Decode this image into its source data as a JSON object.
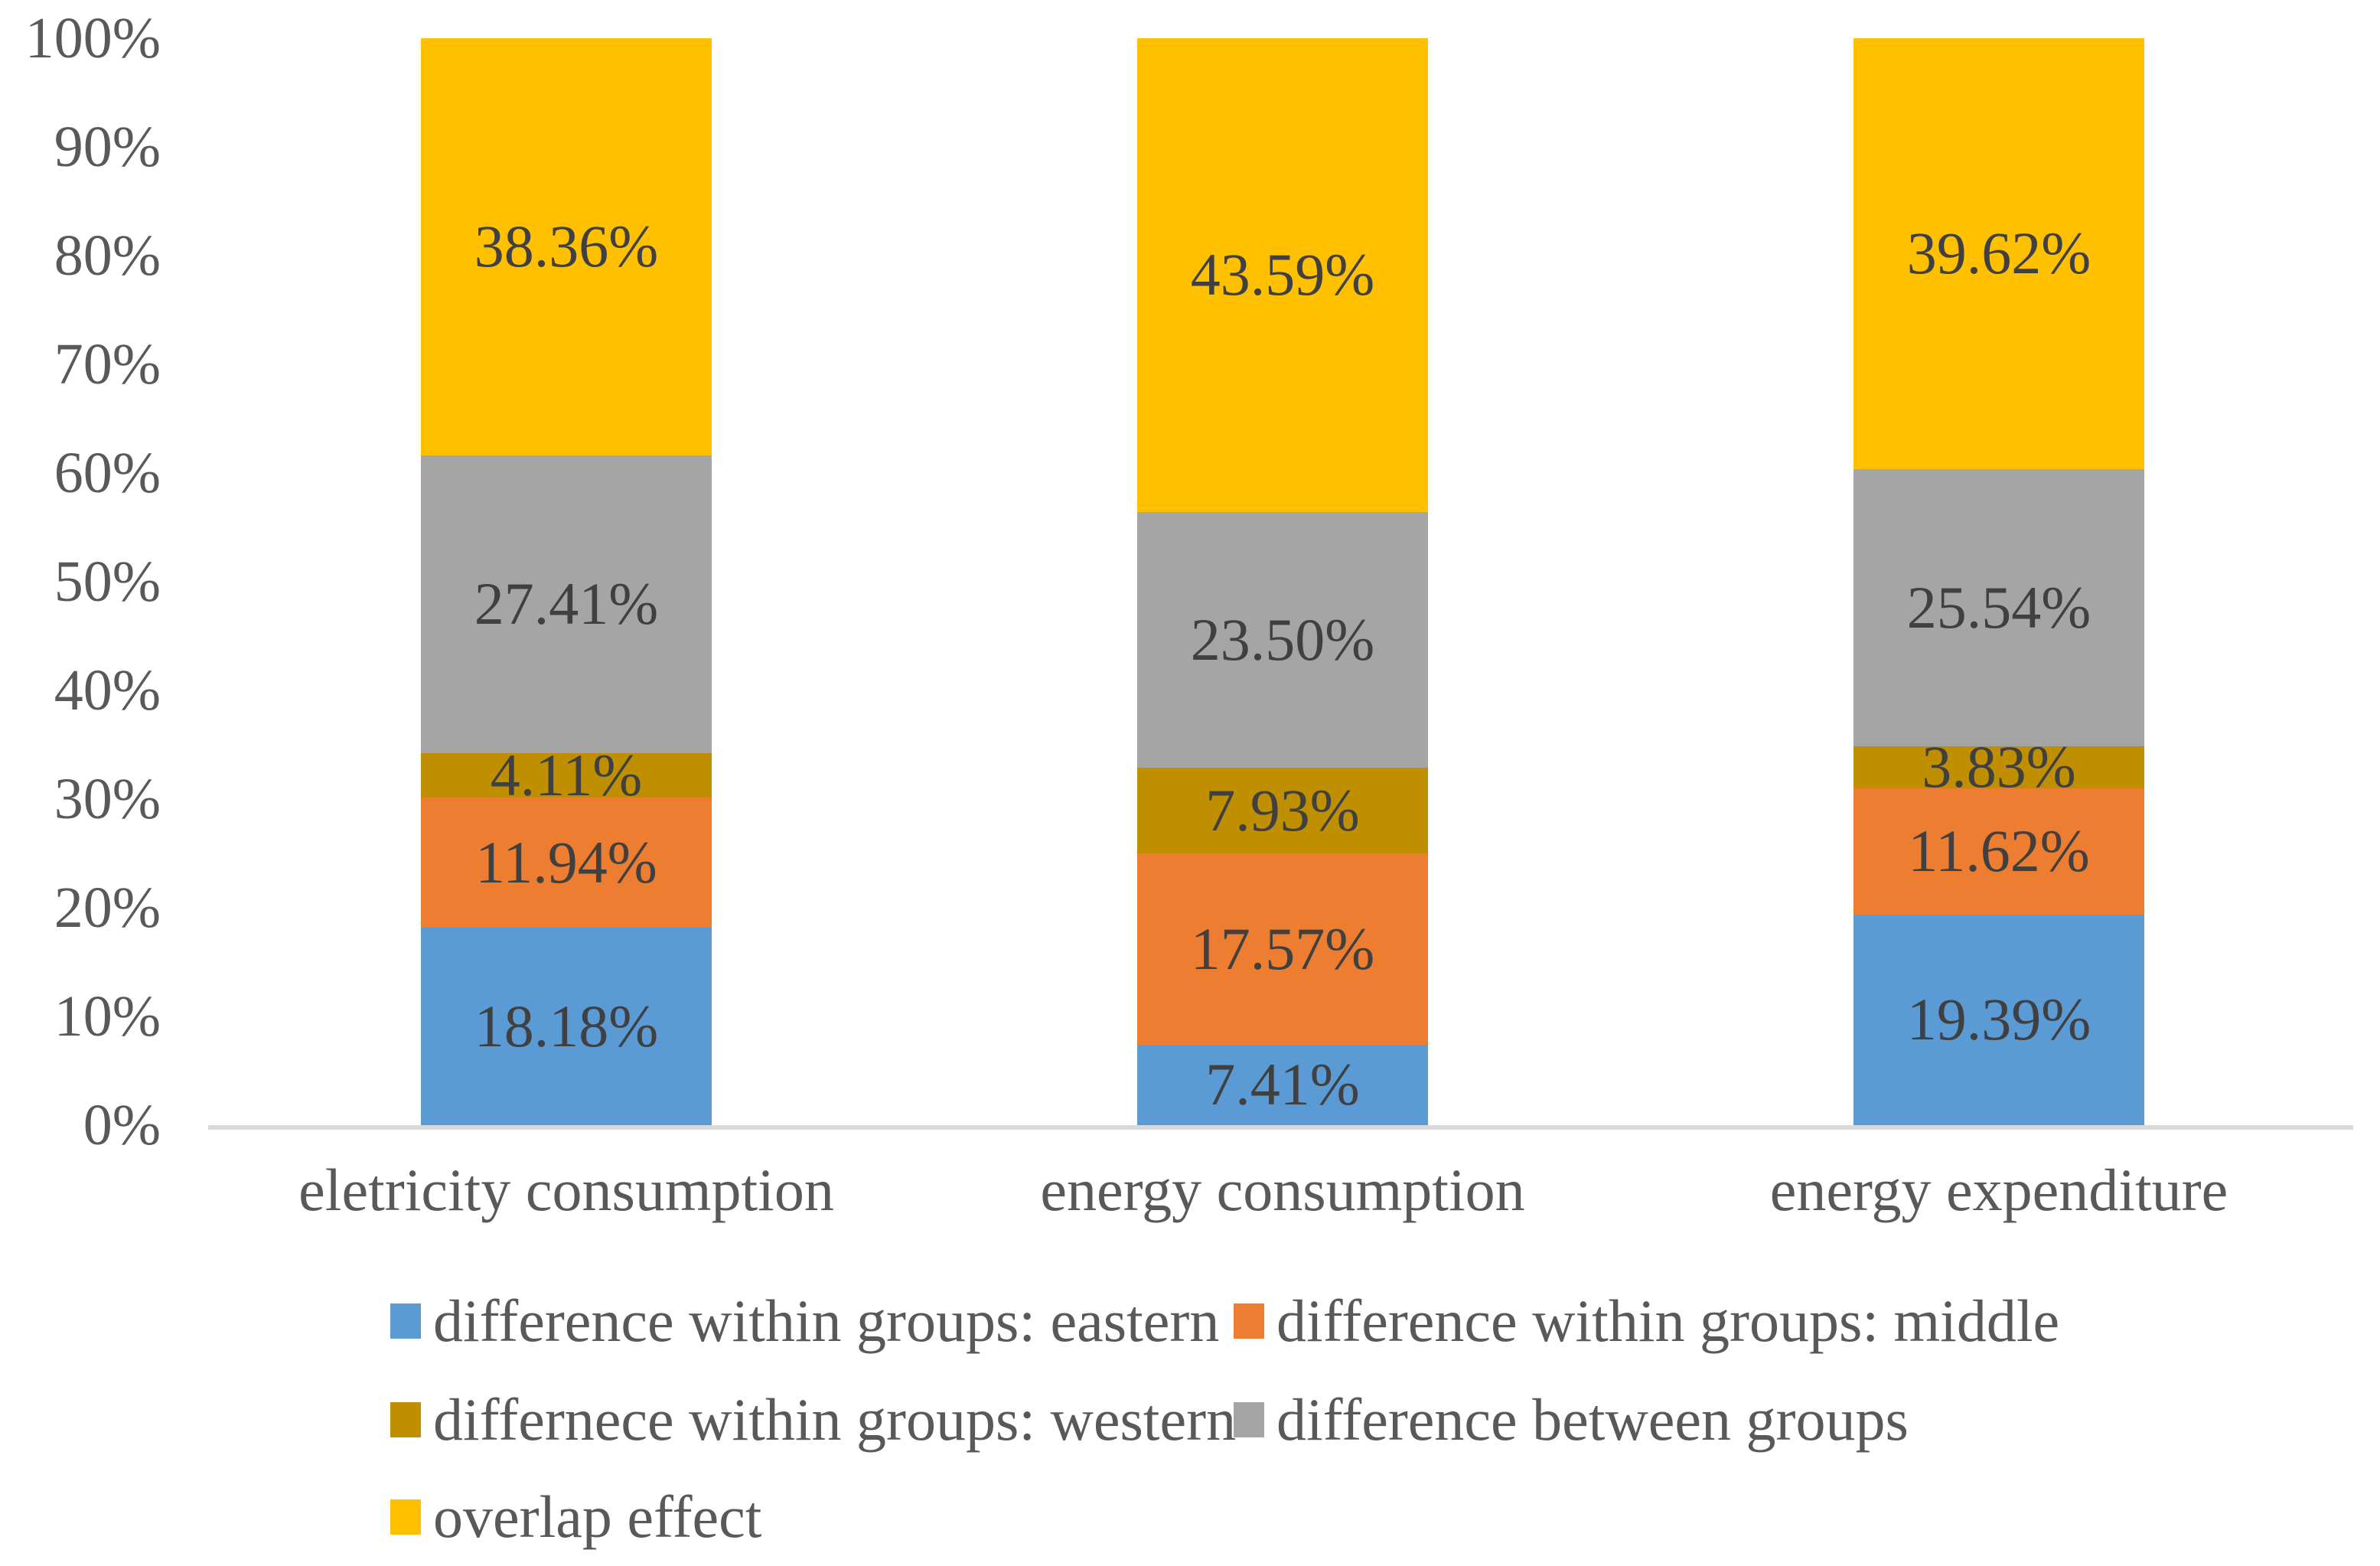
{
  "chart_data": {
    "type": "bar",
    "subtype": "stacked-100-percent",
    "title": "",
    "xlabel": "",
    "ylabel": "",
    "grid": false,
    "categories": [
      "eletricity consumption",
      "energy consumption",
      "energy expenditure"
    ],
    "series": [
      {
        "name": "difference within groups: eastern",
        "color": "#5B9BD5",
        "values": [
          18.18,
          7.41,
          19.39
        ],
        "labels": [
          "18.18%",
          "7.41%",
          "19.39%"
        ]
      },
      {
        "name": "difference within groups: middle",
        "color": "#ED7D31",
        "values": [
          11.94,
          17.57,
          11.62
        ],
        "labels": [
          "11.94%",
          "17.57%",
          "11.62%"
        ]
      },
      {
        "name": "differnece within groups: western",
        "color": "#BF8F00",
        "values": [
          4.11,
          7.93,
          3.83
        ],
        "labels": [
          "4.11%",
          "7.93%",
          "3.83%"
        ]
      },
      {
        "name": "difference between groups",
        "color": "#A5A5A5",
        "values": [
          27.41,
          23.5,
          25.54
        ],
        "labels": [
          "27.41%",
          "23.50%",
          "25.54%"
        ]
      },
      {
        "name": "overlap effect",
        "color": "#FFC000",
        "values": [
          38.36,
          43.59,
          39.62
        ],
        "labels": [
          "38.36%",
          "43.59%",
          "39.62%"
        ]
      }
    ],
    "y_axis": {
      "min": 0,
      "max": 100,
      "tick_step": 10,
      "ticks": [
        "100%",
        "90%",
        "80%",
        "70%",
        "60%",
        "50%",
        "40%",
        "30%",
        "20%",
        "10%",
        "0%"
      ]
    },
    "legend": {
      "position": "bottom",
      "rows": [
        [
          "difference within groups: eastern",
          "difference within groups: middle"
        ],
        [
          "differnece within groups: western",
          "difference between groups"
        ],
        [
          "overlap effect"
        ]
      ]
    },
    "colors": {
      "axis_line": "#D9D9D9",
      "tick_text": "#595959",
      "category_text": "#595959",
      "legend_text": "#595959",
      "data_label_text": "#404040",
      "background": "#FFFFFF"
    }
  }
}
